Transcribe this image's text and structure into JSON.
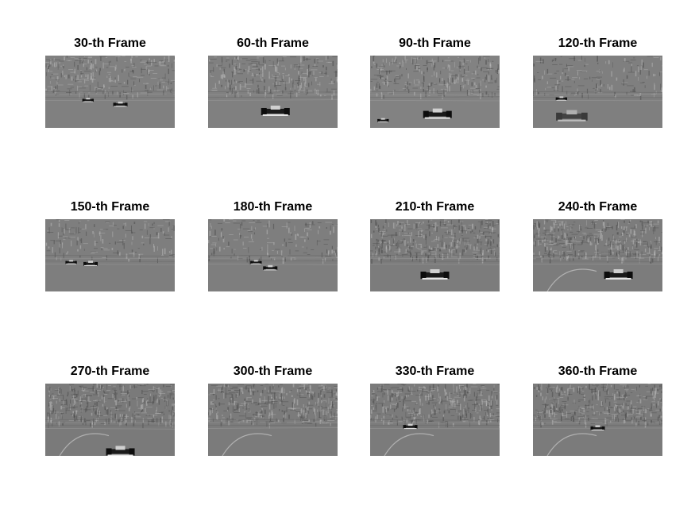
{
  "frames": [
    {
      "title": "30-th Frame",
      "car": "small",
      "car_pos": [
        0.58,
        0.68
      ],
      "extra_cars": [
        [
          0.33,
          0.62
        ]
      ],
      "track_curve": false,
      "stand_detail": "medium",
      "shade": "#808080"
    },
    {
      "title": "60-th Frame",
      "car": "large",
      "car_pos": [
        0.52,
        0.78
      ],
      "extra_cars": [],
      "track_curve": false,
      "stand_detail": "medium",
      "shade": "#808080"
    },
    {
      "title": "90-th Frame",
      "car": "large",
      "car_pos": [
        0.52,
        0.82
      ],
      "extra_cars": [
        [
          0.1,
          0.9
        ]
      ],
      "track_curve": false,
      "stand_detail": "medium",
      "shade": "#828282"
    },
    {
      "title": "120-th Frame",
      "car": "blur",
      "car_pos": [
        0.3,
        0.85
      ],
      "extra_cars": [
        [
          0.22,
          0.6
        ]
      ],
      "track_curve": false,
      "stand_detail": "low",
      "shade": "#7f7f7f"
    },
    {
      "title": "150-th Frame",
      "car": "small",
      "car_pos": [
        0.35,
        0.62
      ],
      "extra_cars": [
        [
          0.2,
          0.6
        ]
      ],
      "track_curve": false,
      "stand_detail": "low",
      "shade": "#7e7e7e"
    },
    {
      "title": "180-th Frame",
      "car": "small",
      "car_pos": [
        0.48,
        0.68
      ],
      "extra_cars": [
        [
          0.37,
          0.6
        ]
      ],
      "track_curve": false,
      "stand_detail": "low",
      "shade": "#7e7e7e"
    },
    {
      "title": "210-th Frame",
      "car": "large",
      "car_pos": [
        0.5,
        0.78
      ],
      "extra_cars": [],
      "track_curve": false,
      "stand_detail": "high",
      "shade": "#7c7c7c"
    },
    {
      "title": "240-th Frame",
      "car": "large",
      "car_pos": [
        0.66,
        0.78
      ],
      "extra_cars": [],
      "track_curve": true,
      "stand_detail": "high",
      "shade": "#7c7c7c"
    },
    {
      "title": "270-th Frame",
      "car": "large",
      "car_pos": [
        0.58,
        0.95
      ],
      "extra_cars": [],
      "track_curve": true,
      "stand_detail": "high",
      "shade": "#7a7a7a"
    },
    {
      "title": "300-th Frame",
      "car": "none",
      "car_pos": [
        0.5,
        0.6
      ],
      "extra_cars": [],
      "track_curve": true,
      "stand_detail": "high",
      "shade": "#7b7b7b"
    },
    {
      "title": "330-th Frame",
      "car": "small",
      "car_pos": [
        0.31,
        0.6
      ],
      "extra_cars": [],
      "track_curve": true,
      "stand_detail": "high",
      "shade": "#7b7b7b"
    },
    {
      "title": "360-th Frame",
      "car": "small",
      "car_pos": [
        0.5,
        0.62
      ],
      "extra_cars": [],
      "track_curve": true,
      "stand_detail": "high",
      "shade": "#7b7b7b"
    }
  ]
}
